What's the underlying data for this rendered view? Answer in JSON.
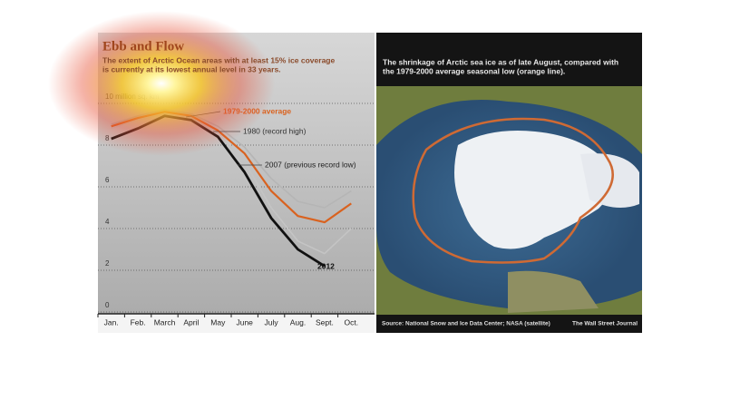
{
  "chart_data": {
    "type": "line",
    "title": "Ebb and Flow",
    "subtitle": [
      "The extent of Arctic Ocean areas with at least 15% ice coverage",
      "is currently at its lowest annual level in 33 years."
    ],
    "categories": [
      "Jan.",
      "Feb.",
      "March",
      "April",
      "May",
      "June",
      "July",
      "Aug.",
      "Sept.",
      "Oct."
    ],
    "series": [
      {
        "name": "1979-2000 average",
        "color": "#d9621f",
        "values": [
          8.9,
          9.3,
          9.6,
          9.4,
          8.7,
          7.6,
          5.8,
          4.6,
          4.3,
          5.2
        ]
      },
      {
        "name": "1980 (record high)",
        "color": "#b5b5b5",
        "values": [
          9.0,
          9.4,
          9.7,
          9.5,
          8.9,
          7.9,
          6.4,
          5.3,
          5.0,
          5.8
        ]
      },
      {
        "name": "2007 (previous record low)",
        "color": "#c4c4c4",
        "values": [
          8.8,
          9.2,
          9.5,
          9.3,
          8.6,
          7.2,
          5.0,
          3.4,
          2.8,
          4.0
        ]
      },
      {
        "name": "2012",
        "color": "#111111",
        "values": [
          8.3,
          8.8,
          9.4,
          9.2,
          8.4,
          6.7,
          4.5,
          3.0,
          2.2,
          null
        ]
      }
    ],
    "ylim": [
      0,
      10
    ],
    "yticks": [
      0,
      2,
      4,
      6,
      8,
      {
        "value": 10,
        "label": "10 million sq. km"
      }
    ],
    "grid": true
  },
  "map": {
    "caption": [
      "The shrinkage of Arctic sea ice as of late August, compared with",
      "the 1979-2000 average seasonal low (orange line)."
    ],
    "source": "Source: National Snow and Ice Data Center; NASA (satellite)",
    "credit": "The Wall Street Journal"
  }
}
